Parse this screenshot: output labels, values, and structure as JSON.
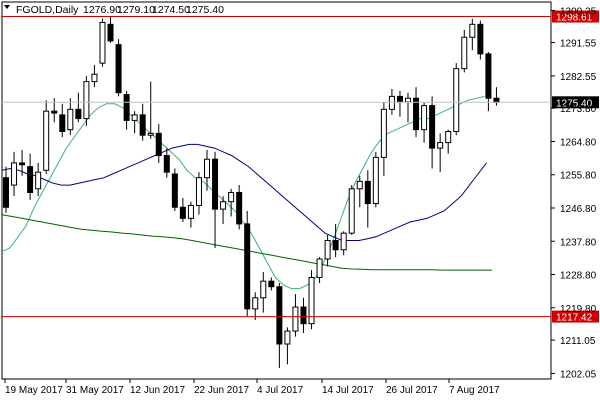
{
  "header": {
    "symbol_label": "FGOLD,Daily",
    "ohlc": [
      "1276.90",
      "1279.10",
      "1274.50",
      "1275.40"
    ]
  },
  "colors": {
    "background": "#ffffff",
    "candle_bull": "#ffffff",
    "candle_bear": "#000000",
    "ma_fast": "#3cb371",
    "ma_mid": "#000080",
    "ma_slow": "#006400",
    "level_line": "#d00000",
    "price_tag": "#000000"
  },
  "chart_data": {
    "type": "candlestick",
    "title": "FGOLD,Daily",
    "x_tick_labels": [
      "19 May 2017",
      "31 May 2017",
      "12 Jun 2017",
      "22 Jun 2017",
      "4 Jul 2017",
      "14 Jul 2017",
      "26 Jul 2017",
      "7 Aug 2017"
    ],
    "y_tick_labels": [
      "1300.25",
      "1291.55",
      "1282.55",
      "1273.80",
      "1264.80",
      "1255.80",
      "1246.80",
      "1237.80",
      "1228.80",
      "1219.80",
      "1211.05",
      "1202.05"
    ],
    "ylim": [
      1200.8,
      1302.0
    ],
    "grid": false,
    "candles": [
      [
        1255.0,
        1258.0,
        1245.5,
        1247.0
      ],
      [
        1253.0,
        1262.0,
        1250.0,
        1259.0
      ],
      [
        1259.0,
        1262.5,
        1255.5,
        1258.5
      ],
      [
        1258.0,
        1261.5,
        1249.0,
        1251.0
      ],
      [
        1252.0,
        1259.0,
        1250.0,
        1256.5
      ],
      [
        1257.0,
        1276.0,
        1256.0,
        1273.0
      ],
      [
        1273.0,
        1276.5,
        1270.0,
        1272.5
      ],
      [
        1272.0,
        1275.0,
        1266.0,
        1267.5
      ],
      [
        1268.0,
        1276.5,
        1266.5,
        1273.5
      ],
      [
        1273.5,
        1278.0,
        1270.0,
        1271.0
      ],
      [
        1271.0,
        1282.5,
        1269.0,
        1281.0
      ],
      [
        1281.0,
        1285.5,
        1279.5,
        1283.0
      ],
      [
        1286.0,
        1298.0,
        1285.0,
        1297.0
      ],
      [
        1296.5,
        1298.5,
        1291.5,
        1292.0
      ],
      [
        1291.0,
        1292.5,
        1277.0,
        1278.0
      ],
      [
        1277.5,
        1278.5,
        1268.0,
        1270.5
      ],
      [
        1270.5,
        1273.0,
        1267.0,
        1272.0
      ],
      [
        1272.0,
        1275.0,
        1265.0,
        1266.5
      ],
      [
        1266.5,
        1281.0,
        1265.5,
        1267.0
      ],
      [
        1267.0,
        1269.5,
        1259.0,
        1261.0
      ],
      [
        1261.0,
        1263.0,
        1255.0,
        1256.5
      ],
      [
        1256.0,
        1257.5,
        1246.0,
        1247.0
      ],
      [
        1247.0,
        1249.5,
        1243.0,
        1244.0
      ],
      [
        1244.0,
        1248.5,
        1241.5,
        1247.5
      ],
      [
        1247.5,
        1256.5,
        1245.0,
        1255.0
      ],
      [
        1255.0,
        1262.5,
        1251.5,
        1260.0
      ],
      [
        1260.0,
        1262.0,
        1236.0,
        1246.5
      ],
      [
        1246.5,
        1250.0,
        1242.5,
        1248.5
      ],
      [
        1248.5,
        1252.0,
        1244.5,
        1251.0
      ],
      [
        1251.0,
        1253.0,
        1241.0,
        1242.5
      ],
      [
        1242.5,
        1246.0,
        1217.5,
        1219.5
      ],
      [
        1219.5,
        1224.0,
        1216.5,
        1222.5
      ],
      [
        1222.5,
        1229.5,
        1218.5,
        1227.0
      ],
      [
        1227.0,
        1228.0,
        1224.5,
        1225.5
      ],
      [
        1225.5,
        1226.5,
        1203.5,
        1210.0
      ],
      [
        1210.0,
        1214.5,
        1204.5,
        1213.5
      ],
      [
        1213.5,
        1223.5,
        1212.0,
        1220.0
      ],
      [
        1220.0,
        1222.5,
        1213.0,
        1215.5
      ],
      [
        1215.5,
        1230.0,
        1214.0,
        1228.0
      ],
      [
        1228.0,
        1233.5,
        1226.5,
        1233.0
      ],
      [
        1233.0,
        1239.5,
        1231.0,
        1238.0
      ],
      [
        1238.0,
        1242.5,
        1233.5,
        1235.5
      ],
      [
        1235.5,
        1240.5,
        1234.0,
        1240.0
      ],
      [
        1240.0,
        1253.0,
        1239.5,
        1252.0
      ],
      [
        1252.0,
        1255.5,
        1247.0,
        1254.0
      ],
      [
        1254.0,
        1257.0,
        1241.5,
        1248.0
      ],
      [
        1248.0,
        1262.0,
        1247.0,
        1260.5
      ],
      [
        1260.5,
        1275.5,
        1255.5,
        1273.5
      ],
      [
        1273.5,
        1279.0,
        1272.0,
        1277.0
      ],
      [
        1277.0,
        1278.5,
        1271.5,
        1275.5
      ],
      [
        1275.5,
        1278.0,
        1270.0,
        1276.5
      ],
      [
        1276.5,
        1279.5,
        1266.0,
        1268.0
      ],
      [
        1268.0,
        1275.5,
        1264.5,
        1274.5
      ],
      [
        1274.5,
        1277.0,
        1257.5,
        1263.0
      ],
      [
        1263.0,
        1267.0,
        1256.5,
        1264.5
      ],
      [
        1264.5,
        1268.0,
        1261.5,
        1267.5
      ],
      [
        1267.5,
        1286.0,
        1266.5,
        1284.5
      ],
      [
        1284.5,
        1295.0,
        1283.5,
        1293.0
      ],
      [
        1293.0,
        1298.0,
        1289.5,
        1296.5
      ],
      [
        1296.5,
        1297.5,
        1287.0,
        1288.5
      ],
      [
        1288.5,
        1289.0,
        1273.0,
        1276.5
      ],
      [
        1276.5,
        1279.5,
        1274.5,
        1275.4
      ]
    ],
    "series": [
      {
        "values": [
          1235,
          1236,
          1239,
          1242,
          1247,
          1251,
          1255,
          1259,
          1263,
          1266,
          1269,
          1272,
          1274,
          1275,
          1275,
          1274,
          1272,
          1270,
          1268,
          1266,
          1264,
          1262,
          1260,
          1257,
          1255,
          1254,
          1252,
          1250,
          1248,
          1246,
          1243,
          1240,
          1236,
          1232,
          1228,
          1226,
          1225,
          1225,
          1226,
          1228,
          1232,
          1237,
          1243,
          1249,
          1254,
          1258,
          1262,
          1265,
          1267,
          1268,
          1269,
          1270,
          1271,
          1271,
          1272,
          1273,
          1274,
          1275,
          1276,
          1276.5,
          1277
        ]
      },
      {
        "values": [
          1257,
          1257.5,
          1257,
          1256,
          1255.5,
          1254.5,
          1253.5,
          1253,
          1253,
          1253.5,
          1254,
          1254.5,
          1255,
          1256,
          1257,
          1258,
          1259,
          1260,
          1261,
          1262,
          1263,
          1263.5,
          1264,
          1264,
          1263.5,
          1263,
          1262,
          1261,
          1259.5,
          1258,
          1256,
          1254,
          1252,
          1250,
          1248,
          1246,
          1244,
          1242,
          1240,
          1239,
          1238,
          1238,
          1238,
          1238.5,
          1239,
          1240,
          1241,
          1242,
          1243,
          1243.5,
          1244,
          1245,
          1246,
          1248,
          1250,
          1253,
          1256,
          1259
        ]
      },
      {
        "values": [
          1245,
          1244.5,
          1244,
          1243.5,
          1243,
          1242.5,
          1242,
          1241.5,
          1241,
          1240.8,
          1240.5,
          1240.3,
          1240,
          1239.8,
          1239.5,
          1239.2,
          1239,
          1238.8,
          1238.5,
          1238,
          1237.5,
          1237,
          1236.5,
          1236,
          1235.5,
          1235,
          1234.5,
          1234,
          1233.5,
          1233,
          1232.5,
          1232,
          1231.5,
          1231,
          1230.5,
          1230.3,
          1230.2,
          1230.1,
          1230.1,
          1230.1,
          1230.1,
          1230.1,
          1230.1,
          1230.1,
          1230,
          1230,
          1230,
          1230,
          1230,
          1230
        ]
      }
    ],
    "levels": [
      {
        "value": 1298.61,
        "label": "1298.61"
      },
      {
        "value": 1217.42,
        "label": "1217.42"
      }
    ],
    "current_price": {
      "value": 1275.4,
      "label": "1275.40"
    }
  }
}
